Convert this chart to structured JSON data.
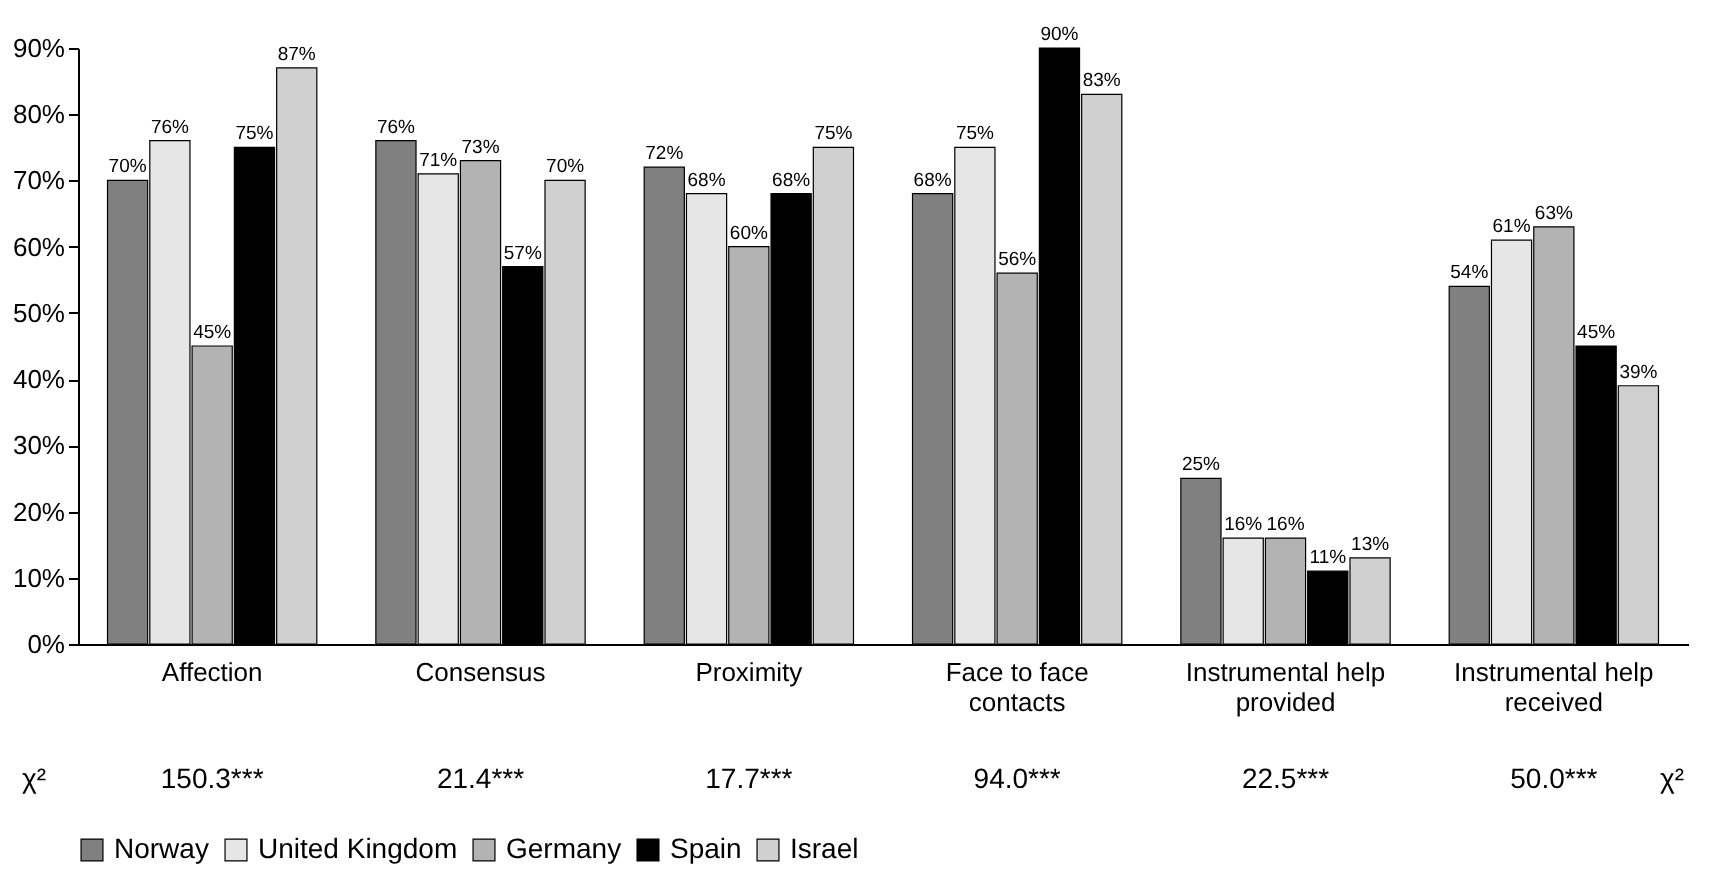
{
  "chart_data": {
    "type": "bar",
    "categories": [
      "Affection",
      "Consensus",
      "Proximity",
      "Face to face\ncontacts",
      "Instrumental help\nprovided",
      "Instrumental help\nreceived"
    ],
    "series": [
      {
        "name": "Norway",
        "color": "#808080",
        "values": [
          70,
          76,
          72,
          68,
          25,
          54
        ],
        "value_labels": [
          "70%",
          "76%",
          "72%",
          "68%",
          "25%",
          "54%"
        ]
      },
      {
        "name": "United Kingdom",
        "color": "#e6e6e6",
        "values": [
          76,
          71,
          68,
          75,
          16,
          61
        ],
        "value_labels": [
          "76%",
          "71%",
          "68%",
          "75%",
          "16%",
          "61%"
        ]
      },
      {
        "name": "Germany",
        "color": "#b3b3b3",
        "values": [
          45,
          73,
          60,
          56,
          16,
          63
        ],
        "value_labels": [
          "45%",
          "73%",
          "60%",
          "56%",
          "16%",
          "63%"
        ]
      },
      {
        "name": "Spain",
        "color": "#000000",
        "values": [
          75,
          57,
          68,
          90,
          11,
          45
        ],
        "value_labels": [
          "75%",
          "57%",
          "68%",
          "90%",
          "11%",
          "45%"
        ]
      },
      {
        "name": "Israel",
        "color": "#d0d0d0",
        "values": [
          87,
          70,
          75,
          83,
          13,
          39
        ],
        "value_labels": [
          "87%",
          "70%",
          "75%",
          "83%",
          "13%",
          "39%"
        ]
      }
    ],
    "ylim": [
      0,
      90
    ],
    "yticks": [
      {
        "value": 0,
        "label": "0%"
      },
      {
        "value": 10,
        "label": "10%"
      },
      {
        "value": 20,
        "label": "20%"
      },
      {
        "value": 30,
        "label": "30%"
      },
      {
        "value": 40,
        "label": "40%"
      },
      {
        "value": 50,
        "label": "50%"
      },
      {
        "value": 60,
        "label": "60%"
      },
      {
        "value": 70,
        "label": "70%"
      },
      {
        "value": 80,
        "label": "80%"
      },
      {
        "value": 90,
        "label": "90%"
      }
    ],
    "grid": false,
    "legend": "bottom",
    "annotations": [
      "χ²",
      "150.3***",
      "21.4***",
      "17.7***",
      "94.0***",
      "22.5***",
      "50.0***",
      "χ²"
    ]
  }
}
